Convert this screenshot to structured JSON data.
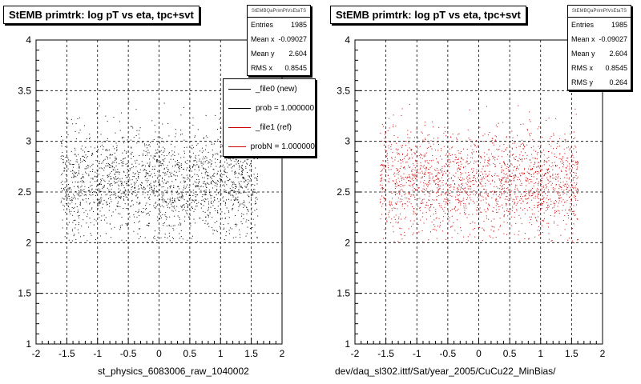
{
  "chart_data": [
    {
      "type": "scatter",
      "title": "StEMB primtrk: log pT vs eta, tpc+svt",
      "xlabel": "st_physics_6083006_raw_1040002",
      "ylabel": "",
      "xlim": [
        -2,
        2
      ],
      "ylim": [
        1,
        4
      ],
      "x_ticks": [
        "-2",
        "-1.5",
        "-1",
        "-0.5",
        "0",
        "0.5",
        "1",
        "1.5",
        "2"
      ],
      "y_ticks": [
        "1",
        "1.5",
        "2",
        "2.5",
        "3",
        "3.5",
        "4"
      ],
      "grid": true,
      "marker_color": "#000000",
      "point_count": 1985,
      "x_range": [
        -1.6,
        1.6
      ],
      "y_range": [
        2.0,
        3.4
      ],
      "stats": {
        "name": "StEMBQaPrimPtVsEtaTS",
        "rows": [
          {
            "label": "Entries",
            "value": "1985"
          },
          {
            "label": "Mean x",
            "value": "-0.09027"
          },
          {
            "label": "Mean y",
            "value": "2.604"
          },
          {
            "label": "RMS x",
            "value": "0.8545"
          }
        ]
      },
      "legend": {
        "placement": "top-right",
        "entries": [
          {
            "label": "_file0 (new)",
            "color": "#000000"
          },
          {
            "label": "prob = 1.000000",
            "color": "#000000"
          },
          {
            "label": "_file1 (ref)",
            "color": "#cc0000"
          },
          {
            "label": "probN = 1.000000",
            "color": "#cc0000"
          }
        ]
      },
      "footer": "... . ... . ... . ...."
    },
    {
      "type": "scatter",
      "title": "StEMB primtrk: log pT vs eta, tpc+svt",
      "xlabel": "dev/daq_sl302.ittf/Sat/year_2005/CuCu22_MinBias/",
      "ylabel": "",
      "xlim": [
        -2,
        2
      ],
      "ylim": [
        1,
        4
      ],
      "x_ticks": [
        "-2",
        "-1.5",
        "-1",
        "-0.5",
        "0",
        "0.5",
        "1",
        "1.5",
        "2"
      ],
      "y_ticks": [
        "1",
        "1.5",
        "2",
        "2.5",
        "3",
        "3.5",
        "4"
      ],
      "grid": true,
      "marker_color": "#cc0000",
      "point_count": 1985,
      "x_range": [
        -1.6,
        1.6
      ],
      "y_range": [
        2.0,
        3.4
      ],
      "stats": {
        "name": "StEMBQaPrimPtVsEtaTS",
        "rows": [
          {
            "label": "Entries",
            "value": "1985"
          },
          {
            "label": "Mean x",
            "value": "-0.09027"
          },
          {
            "label": "Mean y",
            "value": "2.604"
          },
          {
            "label": "RMS x",
            "value": "0.8545"
          },
          {
            "label": "RMS y",
            "value": "0.264"
          }
        ]
      }
    }
  ]
}
